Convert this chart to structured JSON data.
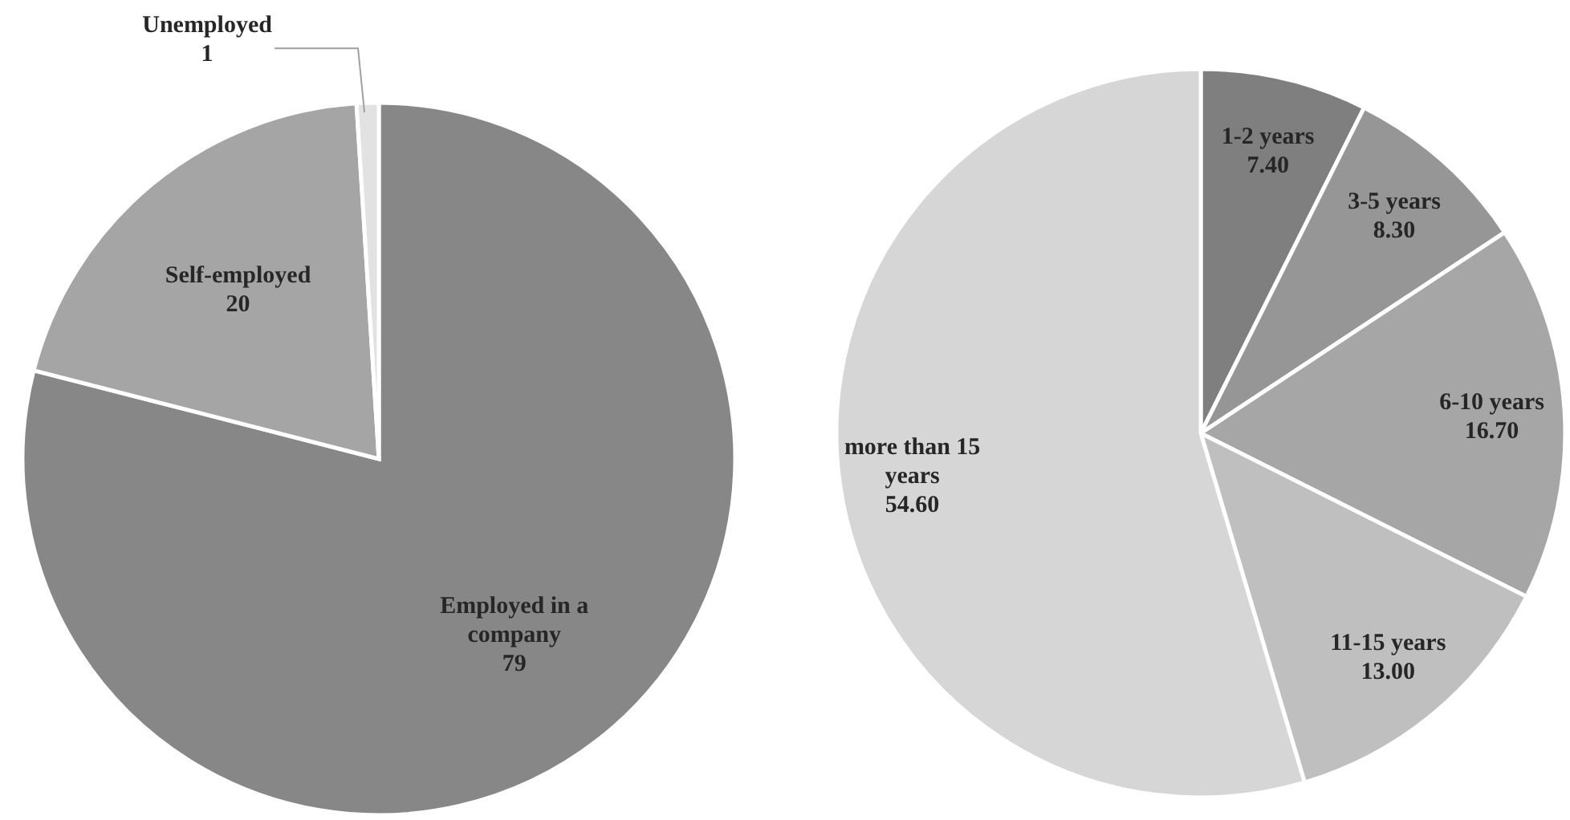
{
  "chart_data": [
    {
      "type": "pie",
      "categories": [
        "Employed in a company",
        "Self-employed",
        "Unemployed"
      ],
      "values": [
        79,
        20,
        1
      ],
      "colors": [
        "#878787",
        "#a5a5a5",
        "#e2e2e2"
      ],
      "data_labels": true
    },
    {
      "type": "pie",
      "categories": [
        "1-2 years",
        "3-5 years",
        "6-10 years",
        "11-15 years",
        "more than 15 years"
      ],
      "values": [
        7.4,
        8.3,
        16.7,
        13,
        54.6
      ],
      "value_labels": [
        "7.40",
        "8.30",
        "16.70",
        "13.00",
        "54.60"
      ],
      "colors": [
        "#7f7f7f",
        "#969696",
        "#a6a6a6",
        "#bfbfbf",
        "#d6d6d6"
      ]
    }
  ]
}
